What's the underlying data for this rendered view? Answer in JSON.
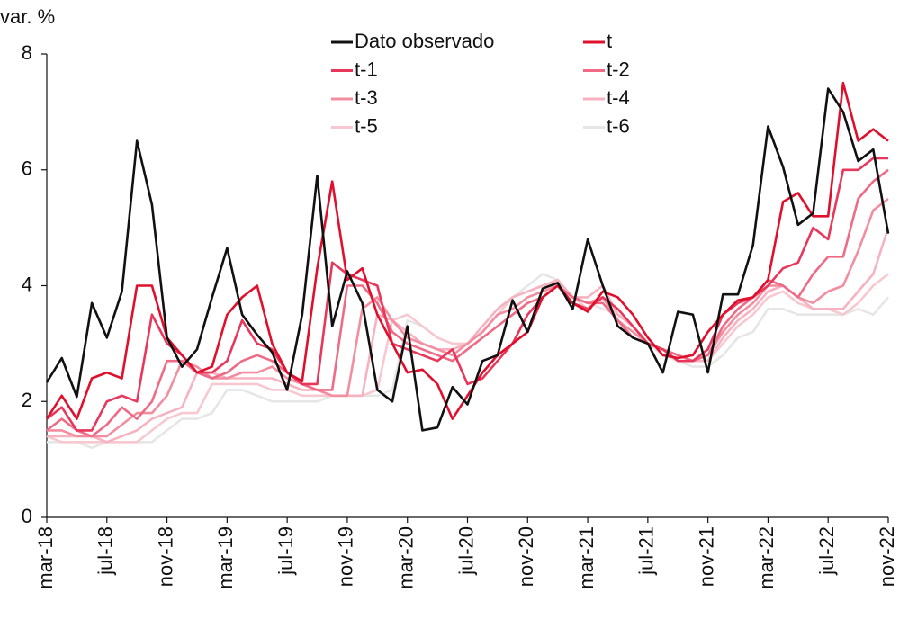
{
  "chart_data": {
    "type": "line",
    "y_label": "var. %",
    "categories": [
      "mar-18",
      null,
      null,
      null,
      "jul-18",
      null,
      null,
      null,
      "nov-18",
      null,
      null,
      null,
      "mar-19",
      null,
      null,
      null,
      "jul-19",
      null,
      null,
      null,
      "nov-19",
      null,
      null,
      null,
      "mar-20",
      null,
      null,
      null,
      "jul-20",
      null,
      null,
      null,
      "nov-20",
      null,
      null,
      null,
      "mar-21",
      null,
      null,
      null,
      "jul-21",
      null,
      null,
      null,
      "nov-21",
      null,
      null,
      null,
      "mar-22",
      null,
      null,
      null,
      "jul-22",
      null,
      null,
      null,
      "nov-22"
    ],
    "ylim": [
      0,
      8
    ],
    "yticks": [
      0,
      2,
      4,
      6,
      8
    ],
    "grid": false,
    "series": [
      {
        "name": "Dato observado",
        "color": "#111111",
        "values": [
          2.33,
          2.75,
          2.08,
          3.7,
          3.1,
          3.9,
          6.5,
          5.4,
          3.1,
          2.6,
          2.9,
          3.8,
          4.65,
          3.5,
          3.15,
          2.85,
          2.2,
          3.5,
          5.9,
          3.3,
          4.25,
          3.7,
          2.2,
          2.0,
          3.3,
          1.5,
          1.55,
          2.25,
          1.95,
          2.7,
          2.8,
          3.75,
          3.2,
          3.95,
          4.05,
          3.6,
          4.8,
          4.0,
          3.3,
          3.1,
          3.0,
          2.5,
          3.55,
          3.5,
          2.5,
          3.85,
          3.85,
          4.7,
          6.75,
          6.05,
          5.05,
          5.25,
          7.4,
          7.0,
          6.15,
          6.35,
          4.9
        ]
      },
      {
        "name": "t",
        "color": "#e0102d",
        "values": [
          1.7,
          2.1,
          1.7,
          2.4,
          2.5,
          2.4,
          4.0,
          4.0,
          3.1,
          2.8,
          2.5,
          2.6,
          3.5,
          3.8,
          4.0,
          3.0,
          2.5,
          2.35,
          4.3,
          5.8,
          4.1,
          4.3,
          3.5,
          3.0,
          2.5,
          2.55,
          2.3,
          1.7,
          2.1,
          2.5,
          2.8,
          3.0,
          3.2,
          3.8,
          4.0,
          3.7,
          3.55,
          3.9,
          3.8,
          3.5,
          3.1,
          2.8,
          2.75,
          2.8,
          3.2,
          3.5,
          3.75,
          3.8,
          4.1,
          5.45,
          5.6,
          5.2,
          5.2,
          7.5,
          6.5,
          6.7,
          6.5
        ]
      },
      {
        "name": "t-1",
        "color": "#e8375a",
        "values": [
          1.7,
          1.9,
          1.5,
          1.5,
          2.0,
          2.1,
          2.0,
          3.5,
          3.0,
          2.8,
          2.5,
          2.5,
          2.7,
          3.4,
          3.0,
          2.9,
          2.5,
          2.3,
          2.3,
          4.4,
          4.2,
          4.1,
          4.0,
          3.0,
          2.9,
          2.8,
          2.7,
          2.9,
          2.3,
          2.4,
          2.7,
          3.0,
          3.5,
          3.8,
          4.0,
          3.7,
          3.6,
          3.8,
          3.6,
          3.3,
          3.0,
          2.9,
          2.7,
          2.7,
          2.9,
          3.5,
          3.7,
          3.8,
          4.0,
          4.3,
          4.4,
          5.0,
          4.8,
          6.0,
          6.0,
          6.2,
          6.2
        ]
      },
      {
        "name": "t-2",
        "color": "#ef6b85",
        "values": [
          1.5,
          1.7,
          1.5,
          1.4,
          1.6,
          1.9,
          1.7,
          2.0,
          2.7,
          2.7,
          2.5,
          2.4,
          2.5,
          2.7,
          2.8,
          2.7,
          2.5,
          2.3,
          2.2,
          2.2,
          4.0,
          4.0,
          3.7,
          3.2,
          3.0,
          2.9,
          2.8,
          2.7,
          2.9,
          3.1,
          3.3,
          3.5,
          3.7,
          3.8,
          4.0,
          3.8,
          3.7,
          3.7,
          3.4,
          3.1,
          3.0,
          2.9,
          2.8,
          2.7,
          2.8,
          3.3,
          3.6,
          3.8,
          4.1,
          4.0,
          3.8,
          4.2,
          4.5,
          4.5,
          5.5,
          5.8,
          6.0
        ]
      },
      {
        "name": "t-3",
        "color": "#f28ea0",
        "values": [
          1.5,
          1.5,
          1.4,
          1.4,
          1.4,
          1.6,
          1.8,
          1.8,
          2.1,
          2.7,
          2.6,
          2.4,
          2.4,
          2.5,
          2.5,
          2.6,
          2.4,
          2.3,
          2.2,
          2.1,
          2.1,
          3.6,
          3.8,
          3.4,
          3.1,
          3.0,
          2.9,
          2.8,
          3.0,
          3.2,
          3.5,
          3.6,
          3.8,
          3.9,
          4.0,
          3.8,
          3.7,
          3.8,
          3.4,
          3.2,
          3.0,
          2.9,
          2.8,
          2.7,
          2.8,
          3.2,
          3.5,
          3.7,
          4.0,
          4.0,
          3.8,
          3.7,
          3.9,
          4.0,
          4.6,
          5.3,
          5.5
        ]
      },
      {
        "name": "t-4",
        "color": "#f6b2c0",
        "values": [
          1.4,
          1.4,
          1.4,
          1.4,
          1.3,
          1.4,
          1.5,
          1.7,
          1.8,
          1.9,
          2.5,
          2.5,
          2.4,
          2.4,
          2.4,
          2.4,
          2.3,
          2.2,
          2.2,
          2.1,
          2.1,
          2.1,
          3.5,
          3.4,
          3.2,
          3.0,
          2.9,
          2.9,
          3.0,
          3.3,
          3.6,
          3.8,
          3.9,
          4.0,
          4.1,
          3.8,
          3.8,
          4.0,
          3.5,
          3.3,
          3.0,
          2.9,
          2.8,
          2.7,
          2.7,
          3.1,
          3.4,
          3.6,
          3.9,
          4.0,
          3.8,
          3.6,
          3.6,
          3.6,
          3.9,
          4.2,
          5.0
        ]
      },
      {
        "name": "t-5",
        "color": "#f8c8d0",
        "values": [
          1.4,
          1.3,
          1.3,
          1.3,
          1.3,
          1.3,
          1.3,
          1.5,
          1.7,
          1.8,
          1.8,
          2.3,
          2.3,
          2.3,
          2.3,
          2.2,
          2.2,
          2.1,
          2.1,
          2.1,
          2.1,
          2.1,
          2.2,
          3.4,
          3.5,
          3.3,
          3.1,
          3.0,
          3.0,
          3.2,
          3.5,
          3.8,
          3.9,
          4.0,
          4.0,
          3.8,
          3.6,
          3.8,
          3.5,
          3.3,
          3.0,
          2.9,
          2.8,
          2.7,
          2.7,
          3.0,
          3.3,
          3.5,
          3.8,
          3.9,
          3.7,
          3.6,
          3.6,
          3.5,
          3.7,
          4.0,
          4.2
        ]
      },
      {
        "name": "t-6",
        "color": "#e6e6e6",
        "values": [
          1.3,
          1.3,
          1.3,
          1.2,
          1.3,
          1.3,
          1.3,
          1.3,
          1.5,
          1.7,
          1.7,
          1.8,
          2.2,
          2.2,
          2.1,
          2.0,
          2.0,
          2.0,
          2.0,
          2.1,
          2.1,
          2.1,
          2.1,
          2.2,
          3.4,
          3.3,
          3.1,
          3.0,
          3.0,
          3.2,
          3.5,
          3.8,
          4.0,
          4.2,
          4.1,
          3.8,
          3.7,
          3.6,
          3.5,
          3.3,
          3.0,
          2.8,
          2.7,
          2.6,
          2.6,
          2.8,
          3.1,
          3.2,
          3.6,
          3.6,
          3.5,
          3.5,
          3.5,
          3.5,
          3.6,
          3.5,
          3.8
        ]
      }
    ]
  }
}
